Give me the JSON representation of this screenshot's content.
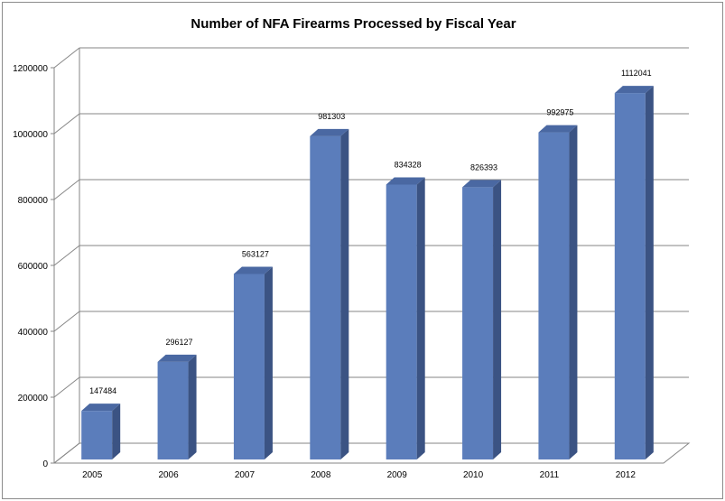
{
  "chart_data": {
    "type": "bar",
    "title": "Number of NFA Firearms Processed by Fiscal Year",
    "xlabel": "",
    "ylabel": "",
    "categories": [
      "2005",
      "2006",
      "2007",
      "2008",
      "2009",
      "2010",
      "2011",
      "2012"
    ],
    "values": [
      147484,
      296127,
      563127,
      981303,
      834328,
      826393,
      992975,
      1112041
    ],
    "data_labels": [
      "147484",
      "296127",
      "563127",
      "981303",
      "834328",
      "826393",
      "992975",
      "1112041"
    ],
    "ylim": [
      0,
      1200000
    ],
    "yticks": [
      0,
      200000,
      400000,
      600000,
      800000,
      1000000,
      1200000
    ],
    "ytick_labels": [
      "0",
      "200000",
      "400000",
      "600000",
      "800000",
      "1000000",
      "1200000"
    ],
    "grid": true,
    "style": "3d-column",
    "legend": "none",
    "colors": {
      "bar_front": "#5b7dbb",
      "bar_side": "#3b5383",
      "bar_top": "#4a68a2",
      "grid": "#868686"
    }
  }
}
